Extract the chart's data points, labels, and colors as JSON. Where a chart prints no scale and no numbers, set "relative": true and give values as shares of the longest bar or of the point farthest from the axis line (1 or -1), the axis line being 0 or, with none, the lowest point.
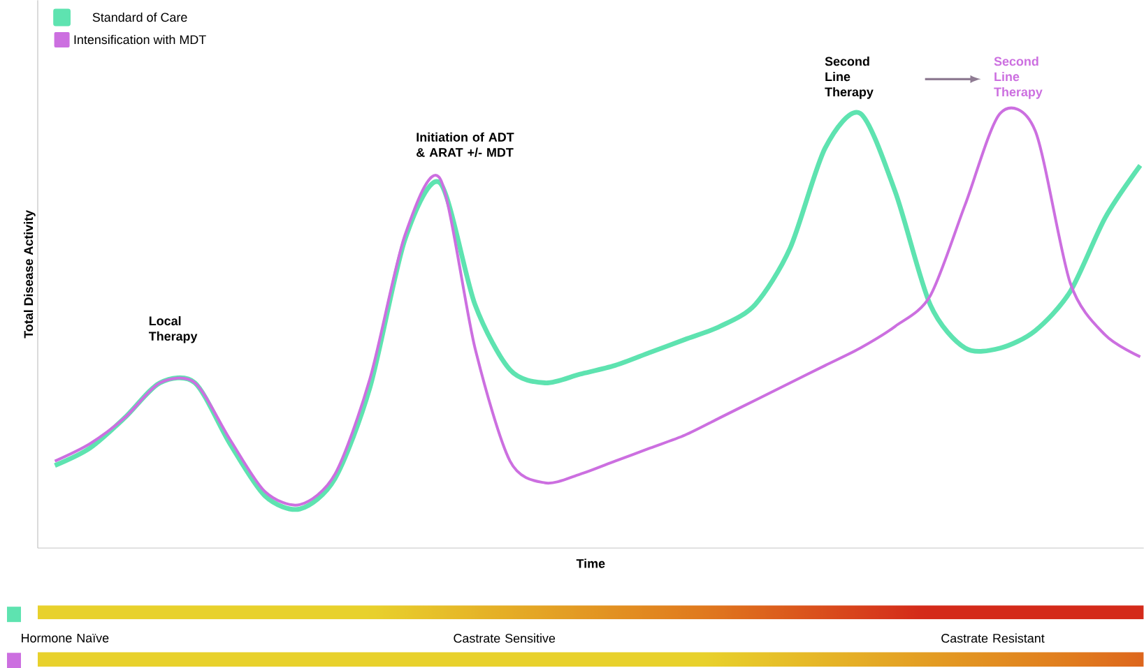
{
  "chart_data": {
    "type": "line",
    "relative": true,
    "xlabel": "Time",
    "ylabel": "Total Disease Activity",
    "legend": "top left",
    "marker": "none",
    "line_style": "solid",
    "categories": [
      null,
      null,
      null,
      null,
      null,
      null,
      null,
      null,
      null,
      null,
      null,
      null,
      null,
      null,
      null,
      null,
      null,
      null,
      null,
      null,
      null,
      null,
      null,
      null,
      null,
      null,
      null,
      null,
      null,
      null,
      null,
      null
    ],
    "series": [
      {
        "name": "Standard of Care",
        "color": "#5ee3b0",
        "values": [
          0.19,
          0.23,
          0.3,
          0.38,
          0.38,
          0.24,
          0.12,
          0.09,
          0.16,
          0.37,
          0.71,
          0.84,
          0.56,
          0.41,
          0.38,
          0.4,
          0.42,
          0.45,
          0.48,
          0.51,
          0.56,
          0.69,
          0.92,
          1.0,
          0.82,
          0.56,
          0.46,
          0.46,
          0.5,
          0.59,
          0.76,
          0.88
        ]
      },
      {
        "name": "Intensification with MDT",
        "color": "#cc6fe0",
        "values": [
          0.2,
          0.24,
          0.3,
          0.38,
          0.38,
          0.25,
          0.13,
          0.1,
          0.17,
          0.39,
          0.72,
          0.85,
          0.46,
          0.2,
          0.15,
          0.17,
          0.2,
          0.23,
          0.26,
          0.3,
          0.34,
          0.38,
          0.42,
          0.46,
          0.51,
          0.58,
          0.79,
          1.0,
          0.96,
          0.61,
          0.49,
          0.44
        ]
      }
    ],
    "annotations": [
      "Local Therapy",
      "Initiation of ADT & ARAT +/- MDT",
      "Second Line Therapy",
      "Second Line Therapy",
      "Hormone Naïve",
      "Castrate Sensitive",
      "Castrate Resistant"
    ]
  }
}
